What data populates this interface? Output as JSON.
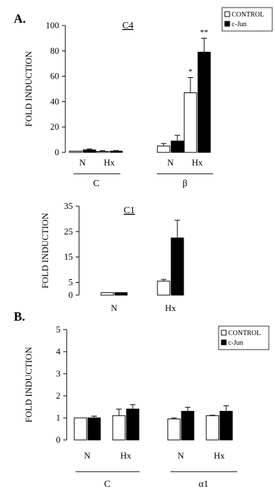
{
  "panel_labels": [
    "A.",
    "B."
  ],
  "legend": {
    "control": "CONTROL",
    "cjun": "c-Jun"
  },
  "chart_data": [
    {
      "type": "bar",
      "title": "C4",
      "ylabel": "FOLD INDUCTION",
      "ylim": [
        0,
        100
      ],
      "yticks": [
        "0",
        "20",
        "40",
        "60",
        "80",
        "100"
      ],
      "categories": [
        "N",
        "Hx",
        "N",
        "Hx"
      ],
      "groups": [
        "C",
        "β"
      ],
      "series": [
        {
          "name": "CONTROL",
          "color": "#ffffff",
          "values": [
            1,
            0.8,
            5,
            47
          ],
          "errors": [
            0,
            0.5,
            2,
            12
          ]
        },
        {
          "name": "c-Jun",
          "color": "#000000",
          "values": [
            2,
            1,
            9,
            79
          ],
          "errors": [
            0.7,
            0.5,
            4.5,
            11
          ]
        }
      ],
      "significance": [
        {
          "category": 3,
          "series": 0,
          "label": "*"
        },
        {
          "category": 3,
          "series": 1,
          "label": "**"
        }
      ],
      "legend_position": "top-right"
    },
    {
      "type": "bar",
      "title": "C1",
      "ylabel": "FOLD INDUCTION",
      "ylim": [
        0,
        35
      ],
      "yticks": [
        "0",
        "5",
        "15",
        "25",
        "35"
      ],
      "categories": [
        "N",
        "Hx"
      ],
      "series": [
        {
          "name": "CONTROL",
          "color": "#ffffff",
          "values": [
            1,
            5.5
          ],
          "errors": [
            0,
            0.7
          ]
        },
        {
          "name": "c-Jun",
          "color": "#000000",
          "values": [
            1,
            22.5
          ],
          "errors": [
            0,
            7
          ]
        }
      ]
    },
    {
      "type": "bar",
      "ylabel": "FOLD INDUCTION",
      "ylim": [
        0,
        5
      ],
      "yticks": [
        "0",
        "1",
        "2",
        "3",
        "4",
        "5"
      ],
      "categories": [
        "N",
        "Hx",
        "N",
        "Hx"
      ],
      "groups": [
        "C",
        "α1"
      ],
      "series": [
        {
          "name": "CONTROL",
          "color": "#ffffff",
          "values": [
            1,
            1.1,
            0.95,
            1.1
          ],
          "errors": [
            0,
            0.3,
            0.05,
            0.02
          ]
        },
        {
          "name": "c-Jun",
          "color": "#000000",
          "values": [
            1,
            1.4,
            1.3,
            1.3
          ],
          "errors": [
            0.08,
            0.2,
            0.18,
            0.25
          ]
        }
      ],
      "legend_position": "top-right"
    }
  ]
}
